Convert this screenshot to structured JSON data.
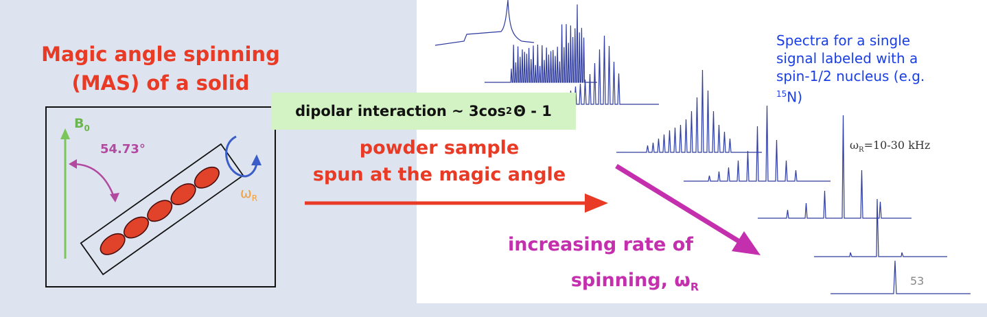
{
  "title": {
    "line1": "Magic angle spinning",
    "line2": "(MAS) of a solid"
  },
  "diagram": {
    "field_label": "B",
    "field_sub": "0",
    "angle_label": "54.73°",
    "spin_label": "ω",
    "spin_sub": "R"
  },
  "dipolar": {
    "prefix": "dipolar interaction ~ 3cos",
    "sup": "2",
    "suffix": "Θ - 1"
  },
  "powder": {
    "line1": "powder sample",
    "line2": "spun at the magic angle"
  },
  "spectra_note": {
    "line1": "Spectra for a single",
    "line2": "signal labeled with a",
    "line3": "spin-1/2 nucleus (e.g.",
    "isotope_sup": "15",
    "isotope": "N)"
  },
  "omega_range": {
    "symbol": "ω",
    "sub": "R",
    "text": "=10-30 kHz"
  },
  "increasing": {
    "line1": "increasing rate of",
    "line2_prefix": "spinning, ω",
    "line2_sub": "R"
  },
  "page_number": "53",
  "colors": {
    "red": "#e83a25",
    "magenta": "#c42fae",
    "blue": "#1a3ee6",
    "green": "#7cc55a",
    "orange": "#f0a040",
    "spectrum": "#2d3a9e"
  }
}
